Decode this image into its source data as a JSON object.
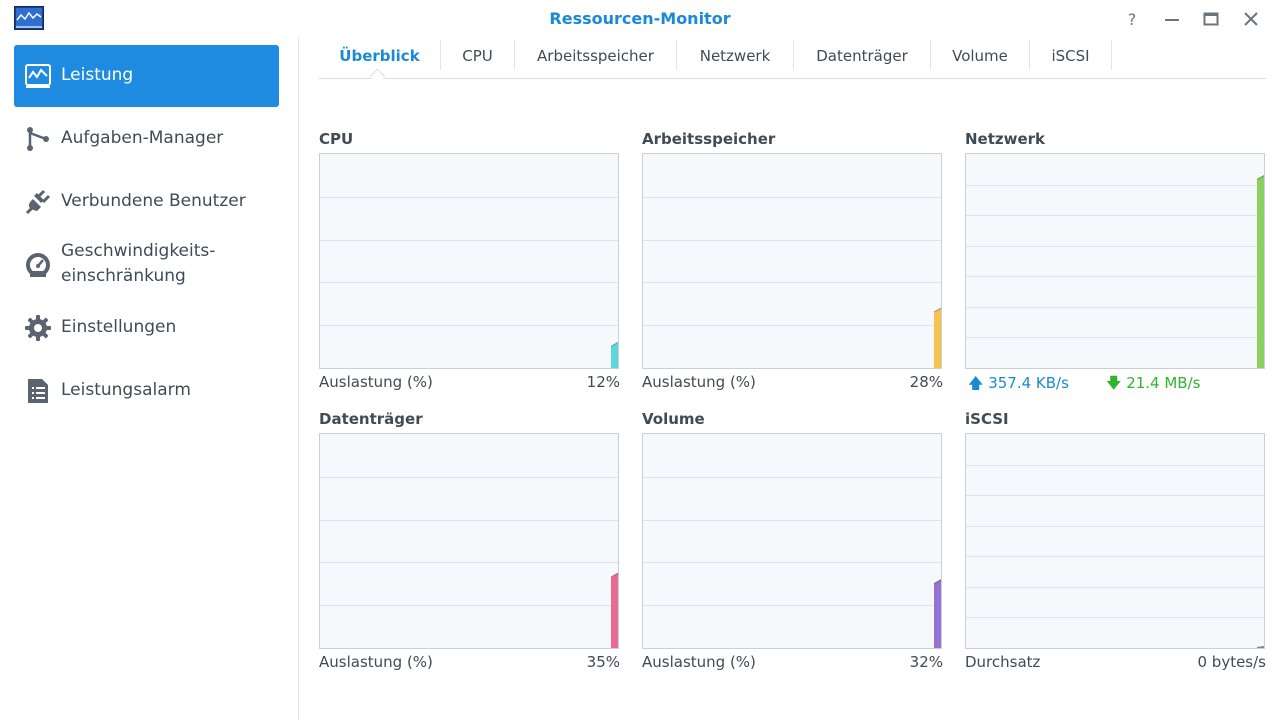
{
  "window": {
    "title": "Ressourcen-Monitor"
  },
  "sidebar": {
    "items": [
      {
        "label": "Leistung",
        "icon": "performance-chart-icon",
        "active": true
      },
      {
        "label": "Aufgaben-Manager",
        "icon": "task-manager-icon"
      },
      {
        "label": "Verbundene Benutzer",
        "icon": "plug-icon"
      },
      {
        "label": "Geschwindigkeits-",
        "label2": "einschränkung",
        "icon": "speedometer-icon"
      },
      {
        "label": "Einstellungen",
        "icon": "gear-icon"
      },
      {
        "label": "Leistungsalarm",
        "icon": "list-document-icon"
      }
    ]
  },
  "tabs": [
    "Überblick",
    "CPU",
    "Arbeitsspeicher",
    "Netzwerk",
    "Datenträger",
    "Volume",
    "iSCSI"
  ],
  "panels": {
    "cpu": {
      "title": "CPU",
      "footer": "Auslastung (%)",
      "value": "12%",
      "level": 12,
      "color": "#5ed6e0"
    },
    "memory": {
      "title": "Arbeitsspeicher",
      "footer": "Auslastung (%)",
      "value": "28%",
      "level": 28,
      "color": "#f5c24f"
    },
    "network": {
      "title": "Netzwerk",
      "upload": "357.4 KB/s",
      "download": "21.4 MB/s",
      "upload_color": "#1a8ad4",
      "download_color": "#2fb52f",
      "level": 90,
      "color": "#8bcf5f"
    },
    "disk": {
      "title": "Datenträger",
      "footer": "Auslastung (%)",
      "value": "35%",
      "level": 35,
      "color": "#ea6a93"
    },
    "volume": {
      "title": "Volume",
      "footer": "Auslastung (%)",
      "value": "32%",
      "level": 32,
      "color": "#9474d2"
    },
    "iscsi": {
      "title": "iSCSI",
      "footer": "Durchsatz",
      "value": "0 bytes/s",
      "level": 0,
      "color": "#7b8794"
    }
  }
}
